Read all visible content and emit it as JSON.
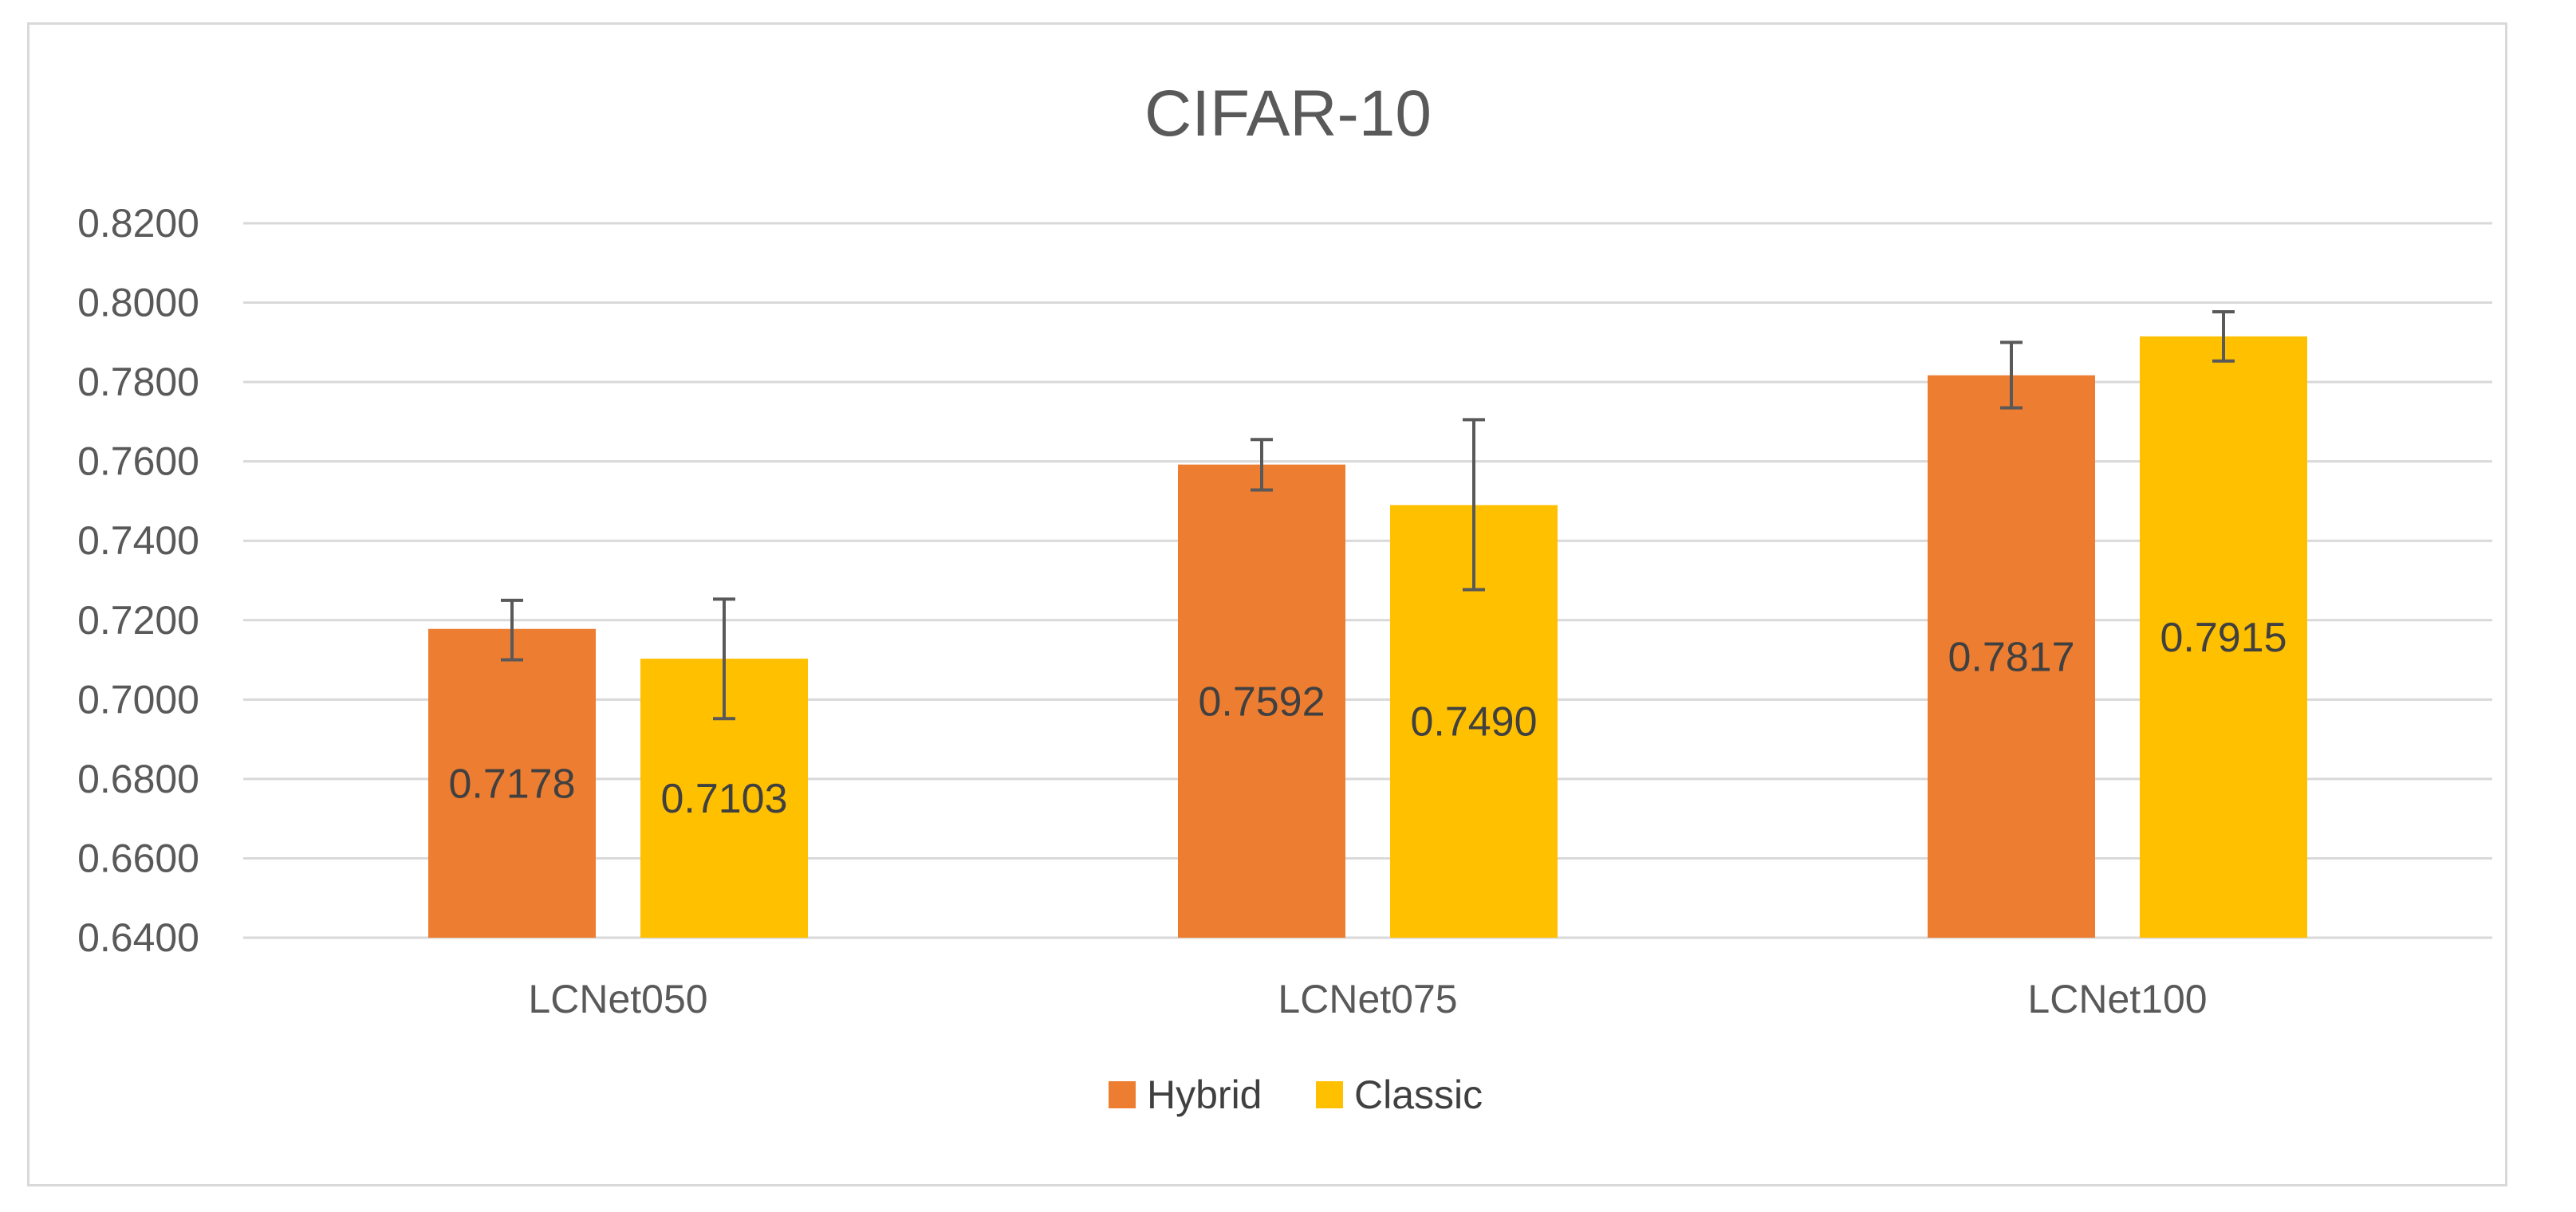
{
  "chart_data": {
    "type": "bar",
    "title": "CIFAR-10",
    "xlabel": "",
    "ylabel": "",
    "categories": [
      "LCNet050",
      "LCNet075",
      "LCNet100"
    ],
    "ylim": [
      0.64,
      0.82
    ],
    "y_ticks": [
      "0.6400",
      "0.6600",
      "0.6800",
      "0.7000",
      "0.7200",
      "0.7400",
      "0.7600",
      "0.7800",
      "0.8000",
      "0.8200"
    ],
    "grid": true,
    "legend_position": "bottom",
    "series": [
      {
        "name": "Hybrid",
        "color": "#ED7D31",
        "values": [
          0.7178,
          0.7592,
          0.7817
        ],
        "labels": [
          "0.7178",
          "0.7592",
          "0.7817"
        ],
        "error_upper": [
          0.725,
          0.7655,
          0.79
        ],
        "error_lower": [
          0.71,
          0.7528,
          0.7735
        ]
      },
      {
        "name": "Classic",
        "color": "#FFC000",
        "values": [
          0.7103,
          0.749,
          0.7915
        ],
        "labels": [
          "0.7103",
          "0.7490",
          "0.7915"
        ],
        "error_upper": [
          0.7253,
          0.7705,
          0.7977
        ],
        "error_lower": [
          0.6952,
          0.7277,
          0.7853
        ]
      }
    ]
  }
}
